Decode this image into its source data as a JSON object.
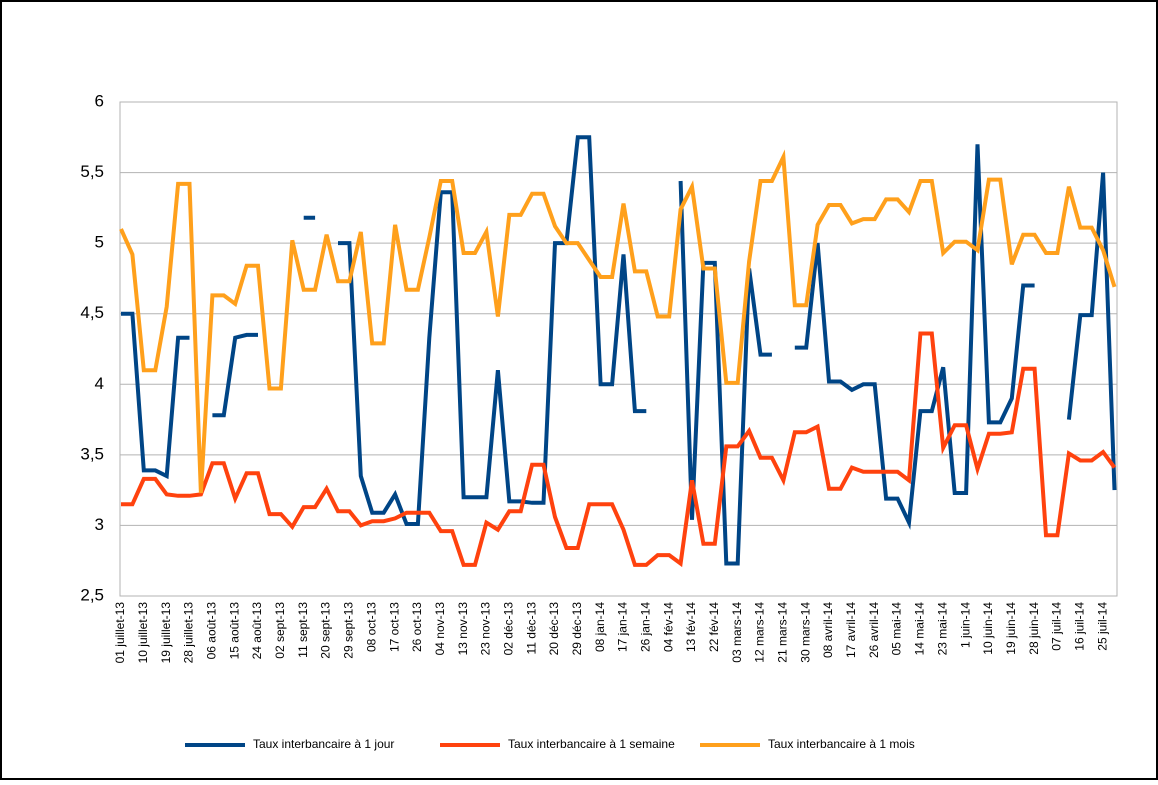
{
  "chart_data": {
    "type": "line",
    "categories": [
      "01 juillet-13",
      null,
      "10 juillet-13",
      null,
      "19 juillet-13",
      null,
      "28 juillet-13",
      null,
      "06 août-13",
      null,
      "15 août-13",
      null,
      "24 août-13",
      null,
      "02 sept-13",
      null,
      "11 sept-13",
      null,
      "20 sept-13",
      null,
      "29 sept-13",
      null,
      "08 oct-13",
      null,
      "17 oct-13",
      null,
      "26 oct-13",
      null,
      "04 nov-13",
      null,
      "13 nov-13",
      null,
      "23 nov-13",
      null,
      "02 déc-13",
      null,
      "11 déc-13",
      null,
      "20 déc-13",
      null,
      "29 déc-13",
      null,
      "08 jan-14",
      null,
      "17 jan-14",
      null,
      "26 jan-14",
      null,
      "04 fév-14",
      null,
      "13 fév-14",
      null,
      "22 fév-14",
      null,
      "03 mars-14",
      null,
      "12 mars-14",
      null,
      "21 mars-14",
      null,
      "30 mars-14",
      null,
      "08 avril-14",
      null,
      "17 avril-14",
      null,
      "26 avril-14",
      null,
      "05 mai-14",
      null,
      "14 mai-14",
      null,
      "23 mai-14",
      null,
      "1 juin-14",
      null,
      "10 juin-14",
      null,
      "19 juin-14",
      null,
      "28 juin-14",
      null,
      "07 juil-14",
      null,
      "16 juil-14",
      null,
      "25 juil-14",
      null
    ],
    "series": [
      {
        "name": "Taux interbancaire à 1 jour",
        "color": "#004586",
        "values": [
          4.5,
          4.5,
          3.39,
          3.39,
          3.35,
          4.33,
          4.33,
          null,
          3.78,
          3.78,
          4.33,
          4.35,
          4.35,
          null,
          null,
          null,
          5.18,
          5.18,
          null,
          5.0,
          5.0,
          3.35,
          3.09,
          3.09,
          3.22,
          3.01,
          3.01,
          4.33,
          5.36,
          5.36,
          3.2,
          3.2,
          3.2,
          4.1,
          3.17,
          3.17,
          3.16,
          3.16,
          5.0,
          5.0,
          5.75,
          5.75,
          4.0,
          4.0,
          4.92,
          3.81,
          3.81,
          null,
          null,
          5.44,
          3.04,
          4.86,
          4.86,
          2.73,
          2.73,
          4.82,
          4.21,
          4.21,
          null,
          4.26,
          4.26,
          5.0,
          4.02,
          4.02,
          3.96,
          4.0,
          4.0,
          3.19,
          3.19,
          3.02,
          3.81,
          3.81,
          4.12,
          3.23,
          3.23,
          5.7,
          3.73,
          3.73,
          3.9,
          4.7,
          4.7,
          null,
          null,
          3.75,
          4.49,
          4.49,
          5.5,
          3.25
        ]
      },
      {
        "name": "Taux interbancaire à 1 semaine",
        "color": "#ff420e",
        "values": [
          3.15,
          3.15,
          3.33,
          3.33,
          3.22,
          3.21,
          3.21,
          3.22,
          3.44,
          3.44,
          3.19,
          3.37,
          3.37,
          3.08,
          3.08,
          2.99,
          3.13,
          3.13,
          3.26,
          3.1,
          3.1,
          3.0,
          3.03,
          3.03,
          3.05,
          3.09,
          3.09,
          3.09,
          2.96,
          2.96,
          2.72,
          2.72,
          3.02,
          2.97,
          3.1,
          3.1,
          3.43,
          3.43,
          3.06,
          2.84,
          2.84,
          3.15,
          3.15,
          3.15,
          2.97,
          2.72,
          2.72,
          2.79,
          2.79,
          2.73,
          3.32,
          2.87,
          2.87,
          3.56,
          3.56,
          3.67,
          3.48,
          3.48,
          3.32,
          3.66,
          3.66,
          3.7,
          3.26,
          3.26,
          3.41,
          3.38,
          3.38,
          3.38,
          3.38,
          3.32,
          4.36,
          4.36,
          3.55,
          3.71,
          3.71,
          3.4,
          3.65,
          3.65,
          3.66,
          4.11,
          4.11,
          2.93,
          2.93,
          3.51,
          3.46,
          3.46,
          3.52,
          3.41
        ]
      },
      {
        "name": "Taux interbancaire à 1 mois",
        "color": "#ffa01c",
        "values": [
          5.1,
          4.92,
          4.1,
          4.1,
          4.55,
          5.42,
          5.42,
          3.23,
          4.63,
          4.63,
          4.57,
          4.84,
          4.84,
          3.97,
          3.97,
          5.02,
          4.67,
          4.67,
          5.06,
          4.73,
          4.73,
          5.08,
          4.29,
          4.29,
          5.13,
          4.67,
          4.67,
          5.04,
          5.44,
          5.44,
          4.93,
          4.93,
          5.08,
          4.48,
          5.2,
          5.2,
          5.35,
          5.35,
          5.12,
          5.0,
          5.0,
          4.88,
          4.76,
          4.76,
          5.28,
          4.8,
          4.8,
          4.48,
          4.48,
          5.24,
          5.4,
          4.82,
          4.82,
          4.01,
          4.01,
          4.87,
          5.44,
          5.44,
          5.61,
          4.56,
          4.56,
          5.13,
          5.27,
          5.27,
          5.14,
          5.17,
          5.17,
          5.31,
          5.31,
          5.22,
          5.44,
          5.44,
          4.93,
          5.01,
          5.01,
          4.95,
          5.45,
          5.45,
          4.85,
          5.06,
          5.06,
          4.93,
          4.93,
          5.4,
          5.11,
          5.11,
          4.95,
          4.69
        ]
      }
    ],
    "ylim": [
      2.5,
      6
    ],
    "yticks": [
      {
        "value": 2.5,
        "label": "2,5"
      },
      3,
      {
        "value": 3.5,
        "label": "3,5"
      },
      4,
      {
        "value": 4.5,
        "label": "4,5"
      },
      5,
      {
        "value": 5.5,
        "label": "5,5"
      },
      6
    ],
    "grid": true,
    "legend": "bottom"
  }
}
